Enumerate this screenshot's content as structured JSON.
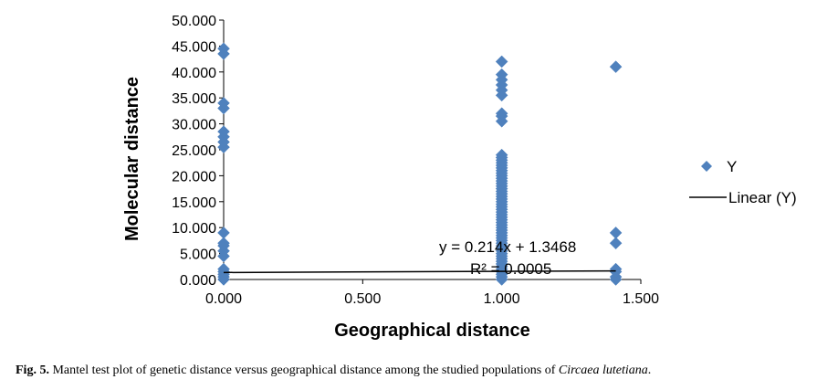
{
  "chart_data": {
    "type": "scatter",
    "xlabel": "Geographical distance",
    "ylabel": "Molecular distance",
    "xlim": [
      0,
      1.5
    ],
    "ylim": [
      0,
      50
    ],
    "x_ticks": [
      "0.000",
      "0.500",
      "1.000",
      "1.500"
    ],
    "y_ticks": [
      "0.000",
      "5.000",
      "10.000",
      "15.000",
      "20.000",
      "25.000",
      "30.000",
      "35.000",
      "40.000",
      "45.000",
      "50.000"
    ],
    "grid": false,
    "legend": "right",
    "series": [
      {
        "name": "Y",
        "marker": "diamond",
        "color": "#4F81BD",
        "points": [
          [
            0,
            0
          ],
          [
            0,
            0.5
          ],
          [
            0,
            1
          ],
          [
            0,
            1.5
          ],
          [
            0,
            2
          ],
          [
            0,
            4.5
          ],
          [
            0,
            5.5
          ],
          [
            0,
            6.5
          ],
          [
            0,
            7
          ],
          [
            0,
            9
          ],
          [
            0,
            25.5
          ],
          [
            0,
            26.5
          ],
          [
            0,
            27.5
          ],
          [
            0,
            28.5
          ],
          [
            0,
            33
          ],
          [
            0,
            34
          ],
          [
            0,
            43.5
          ],
          [
            0,
            44.5
          ],
          [
            1,
            0
          ],
          [
            1,
            0.5
          ],
          [
            1,
            1
          ],
          [
            1,
            1.5
          ],
          [
            1,
            2
          ],
          [
            1,
            2.5
          ],
          [
            1,
            3
          ],
          [
            1,
            3.5
          ],
          [
            1,
            4
          ],
          [
            1,
            4.5
          ],
          [
            1,
            5
          ],
          [
            1,
            5.5
          ],
          [
            1,
            6
          ],
          [
            1,
            6.5
          ],
          [
            1,
            7
          ],
          [
            1,
            7.5
          ],
          [
            1,
            8
          ],
          [
            1,
            8.5
          ],
          [
            1,
            9
          ],
          [
            1,
            9.5
          ],
          [
            1,
            10
          ],
          [
            1,
            10.5
          ],
          [
            1,
            11
          ],
          [
            1,
            11.5
          ],
          [
            1,
            12
          ],
          [
            1,
            12.5
          ],
          [
            1,
            13
          ],
          [
            1,
            13.5
          ],
          [
            1,
            14
          ],
          [
            1,
            14.5
          ],
          [
            1,
            15
          ],
          [
            1,
            15.5
          ],
          [
            1,
            16
          ],
          [
            1,
            16.5
          ],
          [
            1,
            17
          ],
          [
            1,
            17.5
          ],
          [
            1,
            18
          ],
          [
            1,
            18.5
          ],
          [
            1,
            19
          ],
          [
            1,
            19.5
          ],
          [
            1,
            20
          ],
          [
            1,
            20.5
          ],
          [
            1,
            21
          ],
          [
            1,
            21.5
          ],
          [
            1,
            22
          ],
          [
            1,
            22.5
          ],
          [
            1,
            23
          ],
          [
            1,
            23.5
          ],
          [
            1,
            24
          ],
          [
            1,
            30.5
          ],
          [
            1,
            31.5
          ],
          [
            1,
            32
          ],
          [
            1,
            35.5
          ],
          [
            1,
            36.5
          ],
          [
            1,
            37.5
          ],
          [
            1,
            38.5
          ],
          [
            1,
            39.5
          ],
          [
            1,
            42
          ],
          [
            1.41,
            0
          ],
          [
            1.41,
            0.5
          ],
          [
            1.41,
            1.5
          ],
          [
            1.41,
            2
          ],
          [
            1.41,
            7
          ],
          [
            1.41,
            9
          ],
          [
            1.41,
            41
          ]
        ]
      }
    ],
    "trendline": {
      "name": "Linear (Y)",
      "slope": 0.214,
      "intercept": 1.3468,
      "equation_label": "y = 0.214x + 1.3468",
      "r2_label": "R² = 0.0005",
      "color": "#000000"
    }
  },
  "caption": {
    "label": "Fig. 5.",
    "text": "Mantel test plot of genetic distance versus geographical distance among the studied populations of",
    "species": "Circaea lutetiana",
    "end": "."
  }
}
